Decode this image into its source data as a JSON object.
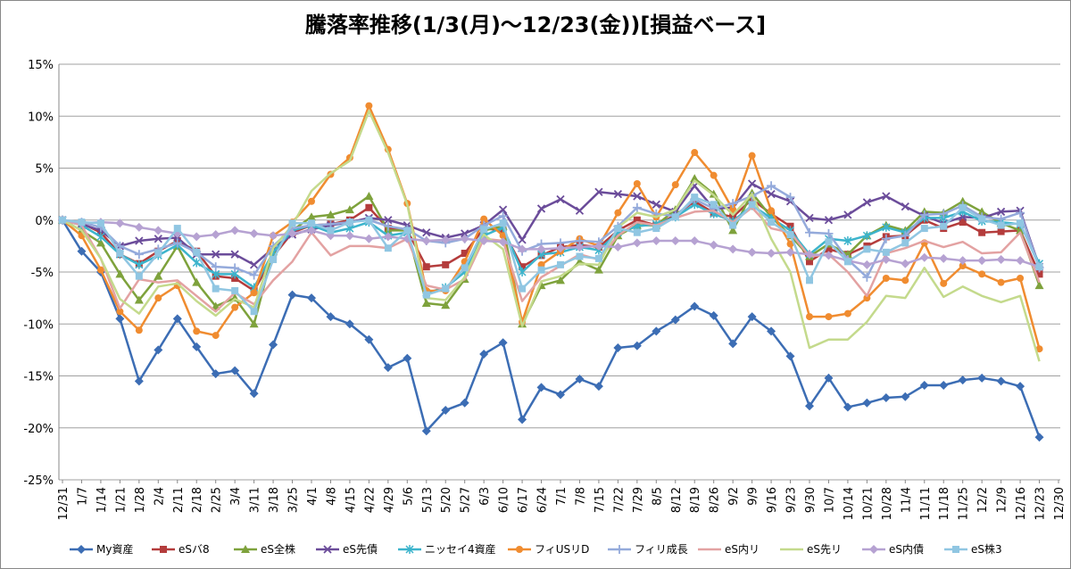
{
  "chart_data": {
    "type": "line",
    "title": "騰落率推移(1/3(月)〜12/23(金))[損益ベース]",
    "categories": [
      "12/31",
      "1/7",
      "1/14",
      "1/21",
      "1/28",
      "2/4",
      "2/11",
      "2/18",
      "2/25",
      "3/4",
      "3/11",
      "3/18",
      "3/25",
      "4/1",
      "4/8",
      "4/15",
      "4/22",
      "4/29",
      "5/6",
      "5/13",
      "5/20",
      "5/27",
      "6/3",
      "6/10",
      "6/17",
      "6/24",
      "7/1",
      "7/8",
      "7/15",
      "7/22",
      "7/29",
      "8/5",
      "8/12",
      "8/19",
      "8/26",
      "9/2",
      "9/9",
      "9/16",
      "9/23",
      "9/30",
      "10/7",
      "10/14",
      "10/21",
      "10/28",
      "11/4",
      "11/11",
      "11/18",
      "11/25",
      "12/2",
      "12/9",
      "12/16",
      "12/23",
      "12/30"
    ],
    "ylim": [
      -25,
      15
    ],
    "yticks": [
      {
        "value": -25,
        "label": "-25%"
      },
      {
        "value": -20,
        "label": "-20%"
      },
      {
        "value": -15,
        "label": "-15%"
      },
      {
        "value": -10,
        "label": "-10%"
      },
      {
        "value": -5,
        "label": "-5%"
      },
      {
        "value": 0,
        "label": "0%"
      },
      {
        "value": 5,
        "label": "5%"
      },
      {
        "value": 10,
        "label": "10%"
      },
      {
        "value": 15,
        "label": "15%"
      }
    ],
    "grid": true,
    "legend": "bottom",
    "series": [
      {
        "name": "My資産",
        "color": "#3c6db4",
        "marker": "diamond",
        "values": [
          0,
          -3,
          -5,
          -9.5,
          -15.5,
          -12.5,
          -9.5,
          -12.2,
          -14.8,
          -14.5,
          -16.7,
          -12,
          -7.2,
          -7.5,
          -9.3,
          -10,
          -11.5,
          -14.2,
          -13.3,
          -20.3,
          -18.3,
          -17.6,
          -12.9,
          -11.8,
          -19.2,
          -16.1,
          -16.8,
          -15.3,
          -16,
          -12.3,
          -12.1,
          -10.7,
          -9.6,
          -8.3,
          -9.2,
          -11.9,
          -9.3,
          -10.7,
          -13.1,
          -17.9,
          -15.2,
          -18,
          -17.6,
          -17.1,
          -17,
          -15.9,
          -15.9,
          -15.4,
          -15.2,
          -15.5,
          -16,
          -20.9,
          null
        ]
      },
      {
        "name": "eSバ8",
        "color": "#b43c3c",
        "marker": "square",
        "values": [
          0,
          -0.3,
          -1.2,
          -3.3,
          -4.2,
          -3,
          -2,
          -3,
          -5.4,
          -5.6,
          -6.8,
          -3.5,
          -1.2,
          -0.5,
          -0.4,
          0,
          1.2,
          -0.8,
          -1,
          -4.5,
          -4.3,
          -3.2,
          -0.8,
          -1,
          -4.5,
          -3.4,
          -2.6,
          -2.4,
          -2.6,
          -1,
          0,
          -0.5,
          0.5,
          1.8,
          0.7,
          0.3,
          2,
          0.6,
          -0.6,
          -4,
          -2.8,
          -3.3,
          -2.5,
          -1.6,
          -1.5,
          0,
          -0.8,
          -0.2,
          -1.2,
          -1.1,
          -1,
          -5.2,
          null
        ]
      },
      {
        "name": "eS全株",
        "color": "#7ea23c",
        "marker": "triangle",
        "values": [
          0,
          -1,
          -2.2,
          -5.2,
          -7.7,
          -5.4,
          -2.5,
          -6,
          -8.3,
          -7.5,
          -10,
          -3,
          -1,
          0.3,
          0.5,
          1,
          2.3,
          -1,
          -1,
          -8,
          -8.2,
          -5.7,
          -1,
          -0.6,
          -10,
          -6.3,
          -5.8,
          -4,
          -4.8,
          -1.5,
          -0.5,
          -0.5,
          1,
          4,
          2.5,
          -1,
          2.6,
          0.3,
          -1.5,
          -3.5,
          -2.3,
          -3.3,
          -1.5,
          -0.5,
          -1,
          0.8,
          0.7,
          1.8,
          0.8,
          -0.3,
          -1,
          -6.3,
          null
        ]
      },
      {
        "name": "eS先債",
        "color": "#6b4c9a",
        "marker": "x",
        "values": [
          0,
          -0.4,
          -1,
          -2.5,
          -2,
          -1.8,
          -1.7,
          -3.3,
          -3.3,
          -3.3,
          -4.3,
          -2.7,
          -1.4,
          -0.9,
          -0.5,
          -0.2,
          0.2,
          0,
          -0.5,
          -1.2,
          -1.7,
          -1.3,
          -0.5,
          1,
          -1.9,
          1.1,
          2,
          0.9,
          2.7,
          2.5,
          2.3,
          1.5,
          0.8,
          3.3,
          1.1,
          1.2,
          3.5,
          2.5,
          1.8,
          0.2,
          0,
          0.5,
          1.7,
          2.3,
          1.3,
          0.4,
          -0.3,
          0.3,
          0.2,
          0.8,
          0.9,
          -4.5,
          null
        ]
      },
      {
        "name": "ニッセイ4資産",
        "color": "#3cb4cc",
        "marker": "star",
        "values": [
          0,
          -0.5,
          -1.6,
          -3.3,
          -4.3,
          -3.4,
          -2.4,
          -4.1,
          -5.2,
          -5.2,
          -6.5,
          -3.1,
          -1,
          -0.5,
          -1.2,
          -0.8,
          -0.2,
          -1.5,
          -1.2,
          -7,
          -6.5,
          -5,
          -1.5,
          -0.7,
          -5,
          -3.3,
          -3.1,
          -2.6,
          -2.9,
          -1.2,
          -0.6,
          -0.4,
          0.3,
          1.5,
          0.6,
          -0.1,
          1.4,
          0.2,
          -1,
          -3.3,
          -1.8,
          -2,
          -1.5,
          -0.7,
          -1.2,
          0.2,
          0.2,
          0.8,
          -0.1,
          -0.2,
          -0.4,
          -4.2,
          null
        ]
      },
      {
        "name": "フィUSリD",
        "color": "#f08c30",
        "marker": "circle",
        "values": [
          0,
          -1.5,
          -4.8,
          -8.8,
          -10.6,
          -7.5,
          -6.3,
          -10.7,
          -11.1,
          -8.4,
          -7,
          -1.5,
          -0.2,
          1.8,
          4.4,
          6,
          11,
          6.8,
          1.6,
          -6.8,
          -6.8,
          -4,
          0.1,
          -1.5,
          -9.8,
          -4.3,
          -3,
          -1.8,
          -2.5,
          0.7,
          3.5,
          0.3,
          3.4,
          6.5,
          4.3,
          1,
          6.2,
          0.9,
          -2.3,
          -9.3,
          -9.3,
          -9,
          -7.5,
          -5.6,
          -5.8,
          -2.2,
          -6.1,
          -4.4,
          -5.2,
          -6,
          -5.6,
          -12.4,
          null
        ]
      },
      {
        "name": "フィリ成長",
        "color": "#94aadb",
        "marker": "plus",
        "values": [
          0,
          -0.2,
          -0.7,
          -2.5,
          -3.3,
          -2.8,
          -2.2,
          -3.1,
          -4.5,
          -4.6,
          -5.3,
          -2.5,
          -0.8,
          -0.5,
          -0.4,
          -0.2,
          0,
          -0.6,
          -0.9,
          -2,
          -2.2,
          -1.8,
          -0.5,
          0.4,
          -3,
          -2.3,
          -2.2,
          -2,
          -2.1,
          -0.6,
          1.2,
          0.6,
          0.4,
          2,
          1.1,
          1.6,
          2.3,
          3.3,
          2.2,
          -1.2,
          -1.3,
          -3.8,
          -5.5,
          -1.8,
          -1.5,
          0.5,
          0.6,
          1.4,
          0.3,
          0.1,
          0.7,
          -4.6,
          null
        ]
      },
      {
        "name": "eS内リ",
        "color": "#e3a2a2",
        "marker": "none",
        "values": [
          0,
          -0.5,
          -3.7,
          -8.5,
          -5.7,
          -6,
          -5.8,
          -7.3,
          -8.8,
          -7,
          -8.1,
          -5.8,
          -4,
          -1.2,
          -3.4,
          -2.5,
          -2.5,
          -2.7,
          -1.8,
          -6.3,
          -6.7,
          -5.7,
          -1.8,
          -2,
          -7.8,
          -5.5,
          -4.4,
          -3.3,
          -3.8,
          -1.5,
          -0.2,
          -0.5,
          0.2,
          0.8,
          0.9,
          -0.2,
          1.2,
          -0.8,
          -1.2,
          -3.5,
          -3.3,
          -5,
          -7.3,
          -3.2,
          -2.7,
          -2,
          -2.6,
          -2.1,
          -3.2,
          -3.1,
          -1.2,
          -6,
          null
        ]
      },
      {
        "name": "eS先リ",
        "color": "#c4da8c",
        "marker": "none",
        "values": [
          0,
          -1,
          -3.7,
          -7.6,
          -9,
          -6.4,
          -6.1,
          -7.8,
          -9.2,
          -7.6,
          -8.4,
          -2.7,
          -0.5,
          2.8,
          4.5,
          5.7,
          10.5,
          6.5,
          1.5,
          -7.5,
          -7.7,
          -5.5,
          -1.4,
          -2.8,
          -10.2,
          -5.9,
          -5.4,
          -4.2,
          -4.3,
          -0.7,
          0.7,
          0.3,
          1,
          3.8,
          2.4,
          0.5,
          2.5,
          -1.8,
          -5,
          -12.3,
          -11.5,
          -11.5,
          -9.8,
          -7.3,
          -7.5,
          -4.6,
          -7.4,
          -6.4,
          -7.3,
          -7.9,
          -7.3,
          -13.6,
          null
        ]
      },
      {
        "name": "eS内債",
        "color": "#b6a2d2",
        "marker": "diamond",
        "values": [
          0,
          -0.3,
          -0.2,
          -0.3,
          -0.7,
          -1,
          -1.3,
          -1.6,
          -1.4,
          -1,
          -1.3,
          -1.5,
          -1.3,
          -1,
          -1.5,
          -1.5,
          -1.8,
          -1.6,
          -1.8,
          -2,
          -1.9,
          -1.8,
          -2,
          -2.1,
          -2.8,
          -2.8,
          -2.7,
          -2.6,
          -2.5,
          -2.6,
          -2.2,
          -2,
          -2,
          -2,
          -2.4,
          -2.8,
          -3.1,
          -3.2,
          -3.1,
          -3.3,
          -3.4,
          -3.9,
          -4.3,
          -3.8,
          -4.2,
          -3.6,
          -3.7,
          -3.9,
          -3.9,
          -3.8,
          -3.9,
          -4.5,
          null
        ]
      },
      {
        "name": "eS株3",
        "color": "#90c6e2",
        "marker": "square",
        "values": [
          0,
          -0.2,
          -0.3,
          -3.2,
          -5.4,
          -3.2,
          -0.8,
          -3.1,
          -6.6,
          -6.8,
          -8.8,
          -3.8,
          -0.3,
          -0.3,
          -1,
          -0.2,
          0,
          -2.7,
          -1,
          -7.2,
          -6.6,
          -4.6,
          -0.9,
          -0.3,
          -6.6,
          -4.8,
          -4.3,
          -3.5,
          -3.7,
          -0.8,
          -1.2,
          -0.8,
          0.3,
          2.2,
          1.5,
          -0.5,
          1.5,
          -0.2,
          -1.4,
          -5.8,
          -2.1,
          -4,
          -2.8,
          -3.1,
          -2.2,
          -0.8,
          -0.6,
          1.2,
          0.1,
          -0.5,
          -0.3,
          -4.5,
          null
        ]
      }
    ]
  }
}
